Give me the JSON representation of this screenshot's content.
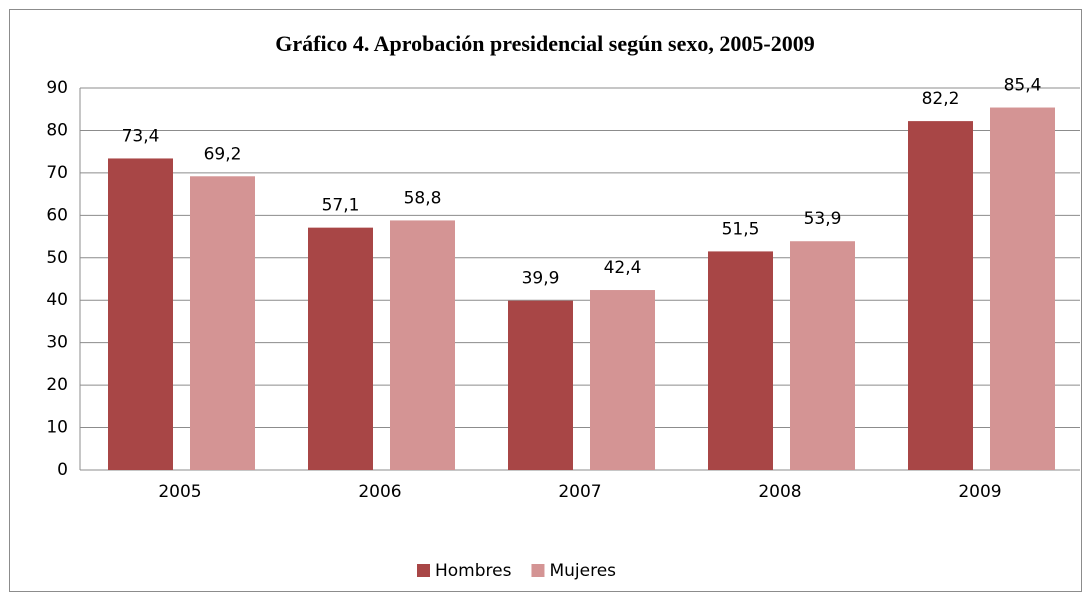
{
  "chart_data": {
    "type": "bar",
    "title": "Gráfico 4. Aprobación presidencial según sexo, 2005-2009",
    "categories": [
      "2005",
      "2006",
      "2007",
      "2008",
      "2009"
    ],
    "series": [
      {
        "name": "Hombres",
        "color": "#a84646",
        "values": [
          73.4,
          57.1,
          39.9,
          51.5,
          82.2
        ],
        "value_labels": [
          "73,4",
          "57,1",
          "39,9",
          "51,5",
          "82,2"
        ]
      },
      {
        "name": "Mujeres",
        "color": "#d49494",
        "values": [
          69.2,
          58.8,
          42.4,
          53.9,
          85.4
        ],
        "value_labels": [
          "69,2",
          "58,8",
          "42,4",
          "53,9",
          "85,4"
        ]
      }
    ],
    "ylim": [
      0,
      90
    ],
    "yticks": [
      0,
      10,
      20,
      30,
      40,
      50,
      60,
      70,
      80,
      90
    ],
    "grid": true,
    "legend": "bottom"
  }
}
